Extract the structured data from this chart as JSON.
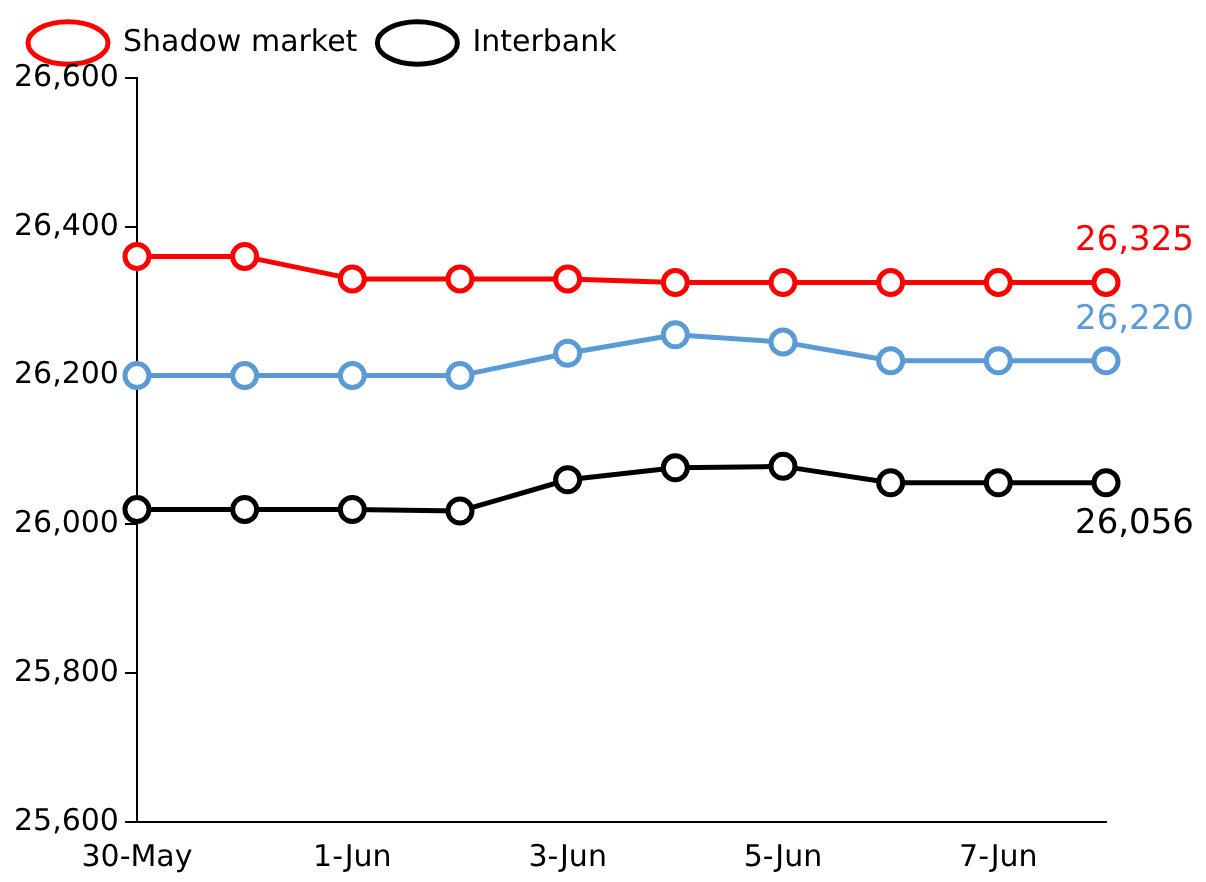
{
  "chart_data": {
    "type": "line",
    "categories": [
      "30-May",
      null,
      "1-Jun",
      null,
      "3-Jun",
      null,
      "5-Jun",
      null,
      "7-Jun",
      null
    ],
    "series": [
      {
        "color": "#5b9bd5",
        "values": [
          26200,
          26200,
          26200,
          26200,
          26230,
          26255,
          26245,
          26220,
          26220,
          26220
        ],
        "value_labels": [
          null,
          null,
          null,
          null,
          null,
          null,
          null,
          null,
          null,
          "26,220"
        ]
      },
      {
        "name": "Shadow market",
        "color": "#ff0000",
        "values": [
          26360,
          26360,
          26330,
          26330,
          26330,
          26325,
          26325,
          26325,
          26325,
          26325
        ],
        "value_labels": [
          null,
          null,
          null,
          null,
          null,
          null,
          null,
          null,
          null,
          "26,325"
        ]
      },
      {
        "name": "Interbank",
        "color": "#000000",
        "values": [
          26020,
          26020,
          26020,
          26018,
          26060,
          26076,
          26078,
          26056,
          26056,
          26056
        ],
        "value_labels": [
          null,
          null,
          null,
          null,
          null,
          null,
          null,
          null,
          null,
          "26,056"
        ]
      }
    ],
    "ylim": [
      25600,
      26600
    ],
    "yticks": [
      {
        "value": 25600,
        "label": "25,600"
      },
      {
        "value": 25800,
        "label": "25,800"
      },
      {
        "value": 26000,
        "label": "26,000"
      },
      {
        "value": 26200,
        "label": "26,200"
      },
      {
        "value": 26400,
        "label": "26,400"
      },
      {
        "value": 26600,
        "label": "26,600"
      }
    ],
    "grid": false,
    "legend": "top",
    "marker": "circle",
    "line_style": "solid"
  }
}
